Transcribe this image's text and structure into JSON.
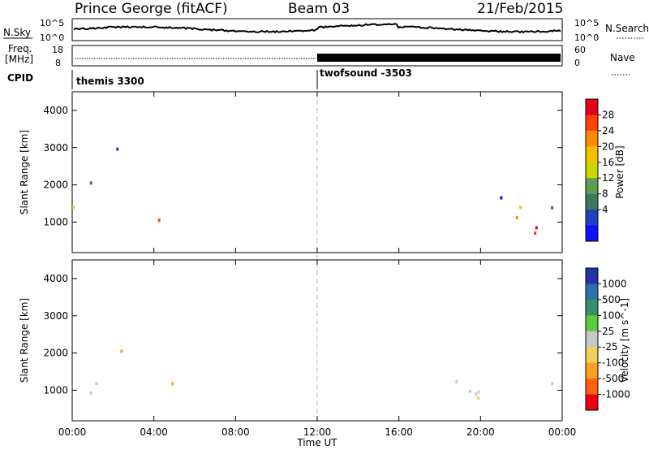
{
  "header": {
    "station": "Prince George (fitACF)",
    "beam": "Beam 03",
    "date": "21/Feb/2015"
  },
  "noise_panel": {
    "left_label": "N.Sky",
    "left_ticks": [
      "10^5",
      "10^0"
    ],
    "right_ticks": [
      "10^5",
      "10^0"
    ],
    "right_label": "N.Search"
  },
  "freq_panel": {
    "left_label_line1": "Freq.",
    "left_label_line2": "[MHz]",
    "left_ticks": [
      "18",
      "8"
    ],
    "right_ticks": [
      "60",
      "0"
    ],
    "right_label": "Nave"
  },
  "cpid": {
    "label": "CPID",
    "modes": [
      {
        "name": "themis 3300",
        "start_hour": 0
      },
      {
        "name": "twofsound -3503",
        "start_hour": 12
      }
    ]
  },
  "chart_data": [
    {
      "type": "heatmap",
      "name": "power",
      "ylabel": "Slant Range [km]",
      "ylim": [
        180,
        4500
      ],
      "yticks": [
        "4000",
        "3000",
        "2000",
        "1000"
      ],
      "colorbar_label": "Power [dB]",
      "colorbar_ticks": [
        "28",
        "24",
        "20",
        "16",
        "12",
        "8",
        "4"
      ],
      "colorbar_colors": [
        "#e8001c",
        "#ff4000",
        "#ff8c00",
        "#f5c000",
        "#c8d800",
        "#5aa050",
        "#3a7a5a",
        "#2040c0",
        "#1010ff"
      ]
    },
    {
      "type": "heatmap",
      "name": "velocity",
      "ylabel": "Slant Range [km]",
      "ylim": [
        180,
        4500
      ],
      "yticks": [
        "4000",
        "3000",
        "2000",
        "1000"
      ],
      "colorbar_label": "Velocity [m s^-1]",
      "colorbar_ticks": [
        "1000",
        "500",
        "100",
        "25",
        "-25",
        "-100",
        "-500",
        "-1000"
      ],
      "colorbar_colors": [
        "#2233aa",
        "#2e6fae",
        "#3c8e6a",
        "#5acc40",
        "#c8c8c8",
        "#f2d060",
        "#ffa020",
        "#ff6010",
        "#e80010"
      ]
    }
  ],
  "time_axis": {
    "label": "Time UT",
    "ticks": [
      "00:00",
      "04:00",
      "08:00",
      "12:00",
      "16:00",
      "20:00",
      "00:00"
    ],
    "range_hours": [
      0,
      24
    ]
  }
}
